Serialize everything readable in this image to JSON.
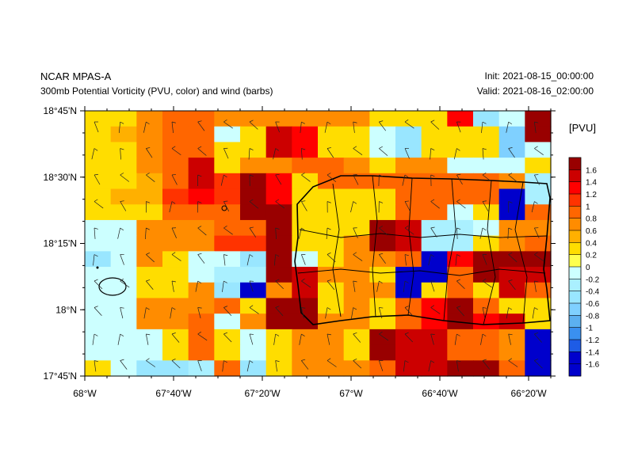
{
  "header": {
    "model": "NCAR MPAS-A",
    "description": "300mb Potential Vorticity (PVU, color) and wind (barbs)",
    "init": "Init: 2021-08-15_00:00:00",
    "valid": "Valid: 2021-08-16_02:00:00"
  },
  "chart_data": {
    "type": "heatmap",
    "title": "300mb Potential Vorticity (PVU, color) and wind (barbs)",
    "colorbar_label": "[PVU]",
    "xlim": [
      -68.0,
      -66.25
    ],
    "ylim": [
      17.75,
      18.75
    ],
    "x_ticks": [
      {
        "value": -68.0,
        "label": "68°W"
      },
      {
        "value": -67.6667,
        "label": "67°40'W"
      },
      {
        "value": -67.3333,
        "label": "67°20'W"
      },
      {
        "value": -67.0,
        "label": "67°W"
      },
      {
        "value": -66.6667,
        "label": "66°40'W"
      },
      {
        "value": -66.3333,
        "label": "66°20'W"
      }
    ],
    "y_ticks": [
      {
        "value": 18.75,
        "label": "18°45'N"
      },
      {
        "value": 18.5,
        "label": "18°30'N"
      },
      {
        "value": 18.25,
        "label": "18°15'N"
      },
      {
        "value": 18.0,
        "label": "18°N"
      },
      {
        "value": 17.75,
        "label": "17°45'N"
      }
    ],
    "colorbar_ticks": [
      "1.6",
      "1.4",
      "1.2",
      "1",
      "0.8",
      "0.6",
      "0.4",
      "0.2",
      "0",
      "-0.2",
      "-0.4",
      "-0.6",
      "-0.8",
      "-1",
      "-1.2",
      "-1.4",
      "-1.6"
    ],
    "colorbar_colors": [
      "#990000",
      "#cc0000",
      "#ff0000",
      "#ff3300",
      "#ff6600",
      "#ff8c00",
      "#ffb000",
      "#ffdd00",
      "#ffff4d",
      "#ccffff",
      "#aaf0ff",
      "#99e6ff",
      "#7fd0ff",
      "#5cb0f0",
      "#3a90f0",
      "#1e5ce6",
      "#0000cc",
      "#0000cc"
    ],
    "grid_cells": [
      {
        "x0": -68.0,
        "x1": -67.9,
        "y0": 18.7,
        "y1": 18.75,
        "v": 0.3
      },
      {
        "x0": -67.9,
        "x1": -67.8,
        "y0": 18.7,
        "y1": 18.75,
        "v": 0.3
      },
      {
        "x0": -67.8,
        "x1": -67.7,
        "y0": 18.7,
        "y1": 18.75,
        "v": 0.6
      },
      {
        "x0": -67.7,
        "x1": -67.6,
        "y0": 18.7,
        "y1": 18.75,
        "v": 0.9
      },
      {
        "x0": -67.6,
        "x1": -67.5,
        "y0": 18.7,
        "y1": 18.75,
        "v": 0.9
      },
      {
        "x0": -67.5,
        "x1": -67.4,
        "y0": 18.7,
        "y1": 18.75,
        "v": 0.7
      },
      {
        "x0": -67.4,
        "x1": -67.3,
        "y0": 18.7,
        "y1": 18.75,
        "v": 0.7
      },
      {
        "x0": -67.3,
        "x1": -67.2,
        "y0": 18.7,
        "y1": 18.75,
        "v": 0.7
      },
      {
        "x0": -67.2,
        "x1": -67.1,
        "y0": 18.7,
        "y1": 18.75,
        "v": 0.7
      },
      {
        "x0": -67.1,
        "x1": -67.0,
        "y0": 18.7,
        "y1": 18.75,
        "v": 0.6
      },
      {
        "x0": -67.0,
        "x1": -66.9,
        "y0": 18.7,
        "y1": 18.75,
        "v": 0.6
      },
      {
        "x0": -66.9,
        "x1": -66.8,
        "y0": 18.7,
        "y1": 18.75,
        "v": 0.3
      },
      {
        "x0": -66.8,
        "x1": -66.7,
        "y0": 18.7,
        "y1": 18.75,
        "v": 0.3
      },
      {
        "x0": -66.7,
        "x1": -66.6,
        "y0": 18.7,
        "y1": 18.75,
        "v": 0.3
      },
      {
        "x0": -66.6,
        "x1": -66.5,
        "y0": 18.7,
        "y1": 18.75,
        "v": 1.3
      },
      {
        "x0": -66.5,
        "x1": -66.4,
        "y0": 18.7,
        "y1": 18.75,
        "v": -0.5
      },
      {
        "x0": -66.4,
        "x1": -66.3,
        "y0": 18.7,
        "y1": 18.75,
        "v": -0.1
      },
      {
        "x0": -66.3,
        "x1": -66.25,
        "y0": 18.7,
        "y1": 18.75,
        "v": 1.7
      }
    ],
    "grid_note_values_by_row": [
      [
        0.3,
        0.3,
        0.6,
        0.9,
        0.9,
        0.7,
        0.7,
        0.7,
        0.7,
        0.6,
        0.6,
        0.3,
        0.3,
        0.3,
        1.3,
        -0.5,
        -0.1,
        1.7
      ],
      [
        0.3,
        0.4,
        0.6,
        0.9,
        0.9,
        -0.1,
        0.3,
        1.5,
        1.3,
        0.3,
        0.3,
        -0.1,
        -0.6,
        0.3,
        0.3,
        0.3,
        -0.7,
        1.7
      ],
      [
        0.3,
        0.3,
        0.6,
        0.9,
        0.9,
        0.3,
        0.3,
        1.5,
        1.3,
        0.3,
        0.3,
        -0.1,
        -0.6,
        0.3,
        0.3,
        0.3,
        -0.7,
        -0.1
      ],
      [
        0.3,
        0.3,
        0.6,
        0.9,
        1.5,
        0.3,
        0.6,
        0.6,
        0.9,
        0.9,
        0.6,
        0.3,
        0.6,
        0.6,
        -0.1,
        -0.1,
        -0.1,
        0.3
      ],
      [
        0.3,
        0.3,
        0.4,
        0.9,
        1.5,
        1.0,
        1.7,
        1.3,
        0.3,
        0.9,
        0.9,
        0.9,
        0.9,
        0.9,
        0.9,
        0.9,
        0.6,
        -0.3
      ],
      [
        0.3,
        0.4,
        0.4,
        1.1,
        1.2,
        1.0,
        1.7,
        1.3,
        0.3,
        0.3,
        0.3,
        0.3,
        0.9,
        0.9,
        0.9,
        0.9,
        -1.5,
        -0.3
      ],
      [
        0.3,
        0.3,
        0.3,
        0.9,
        0.9,
        0.9,
        1.7,
        1.7,
        0.3,
        0.3,
        0.3,
        0.3,
        0.9,
        0.9,
        -0.1,
        0.3,
        -1.5,
        0.9
      ],
      [
        -0.1,
        -0.1,
        0.6,
        0.6,
        0.6,
        0.9,
        0.9,
        1.7,
        0.3,
        0.3,
        0.3,
        1.7,
        1.5,
        -0.3,
        -0.3,
        -0.1,
        0.6,
        0.6
      ],
      [
        -0.1,
        -0.1,
        0.6,
        0.6,
        0.6,
        1.0,
        1.0,
        1.7,
        0.3,
        0.3,
        0.6,
        1.7,
        1.5,
        -0.3,
        -0.3,
        0.3,
        0.6,
        0.9
      ],
      [
        -0.5,
        -0.1,
        0.6,
        0.3,
        -0.1,
        -0.1,
        -0.5,
        1.7,
        -0.1,
        0.3,
        0.6,
        0.6,
        0.9,
        -1.6,
        1.2,
        1.7,
        1.7,
        1.7
      ],
      [
        -0.1,
        -0.1,
        0.3,
        0.3,
        -0.1,
        -0.3,
        -0.3,
        1.7,
        1.5,
        0.6,
        0.6,
        0.3,
        -1.6,
        -1.6,
        0.9,
        1.7,
        1.5,
        1.5
      ],
      [
        -0.2,
        -0.1,
        0.3,
        0.3,
        0.6,
        -0.5,
        -1.6,
        0.6,
        1.5,
        0.3,
        0.6,
        0.6,
        -1.6,
        0.3,
        0.9,
        0.3,
        1.5,
        0.9
      ],
      [
        -0.1,
        -0.1,
        0.6,
        0.6,
        0.6,
        0.9,
        0.3,
        1.7,
        1.7,
        0.3,
        0.6,
        0.3,
        0.9,
        1.2,
        1.7,
        0.9,
        0.3,
        0.3
      ],
      [
        -0.1,
        -0.2,
        0.6,
        0.6,
        0.9,
        -0.1,
        0.6,
        1.7,
        1.7,
        0.6,
        0.6,
        0.3,
        0.9,
        1.2,
        1.7,
        1.2,
        1.5,
        0.3
      ],
      [
        -0.1,
        -0.1,
        -0.1,
        0.3,
        0.9,
        0.3,
        -0.1,
        0.3,
        0.6,
        0.6,
        0.3,
        1.7,
        1.5,
        1.5,
        0.9,
        0.9,
        0.6,
        -1.6
      ],
      [
        -0.1,
        -0.1,
        -0.1,
        0.3,
        0.9,
        0.3,
        -0.1,
        0.3,
        0.6,
        0.6,
        0.3,
        1.7,
        1.5,
        1.5,
        0.9,
        0.9,
        0.6,
        -1.6
      ],
      [
        0.3,
        -0.1,
        -0.5,
        -0.5,
        -0.3,
        0.9,
        -0.5,
        0.3,
        0.6,
        0.6,
        0.6,
        0.9,
        1.5,
        1.5,
        1.7,
        1.7,
        0.9,
        -1.6
      ]
    ],
    "wind_barbs_present": true,
    "coastlines_present": true
  }
}
